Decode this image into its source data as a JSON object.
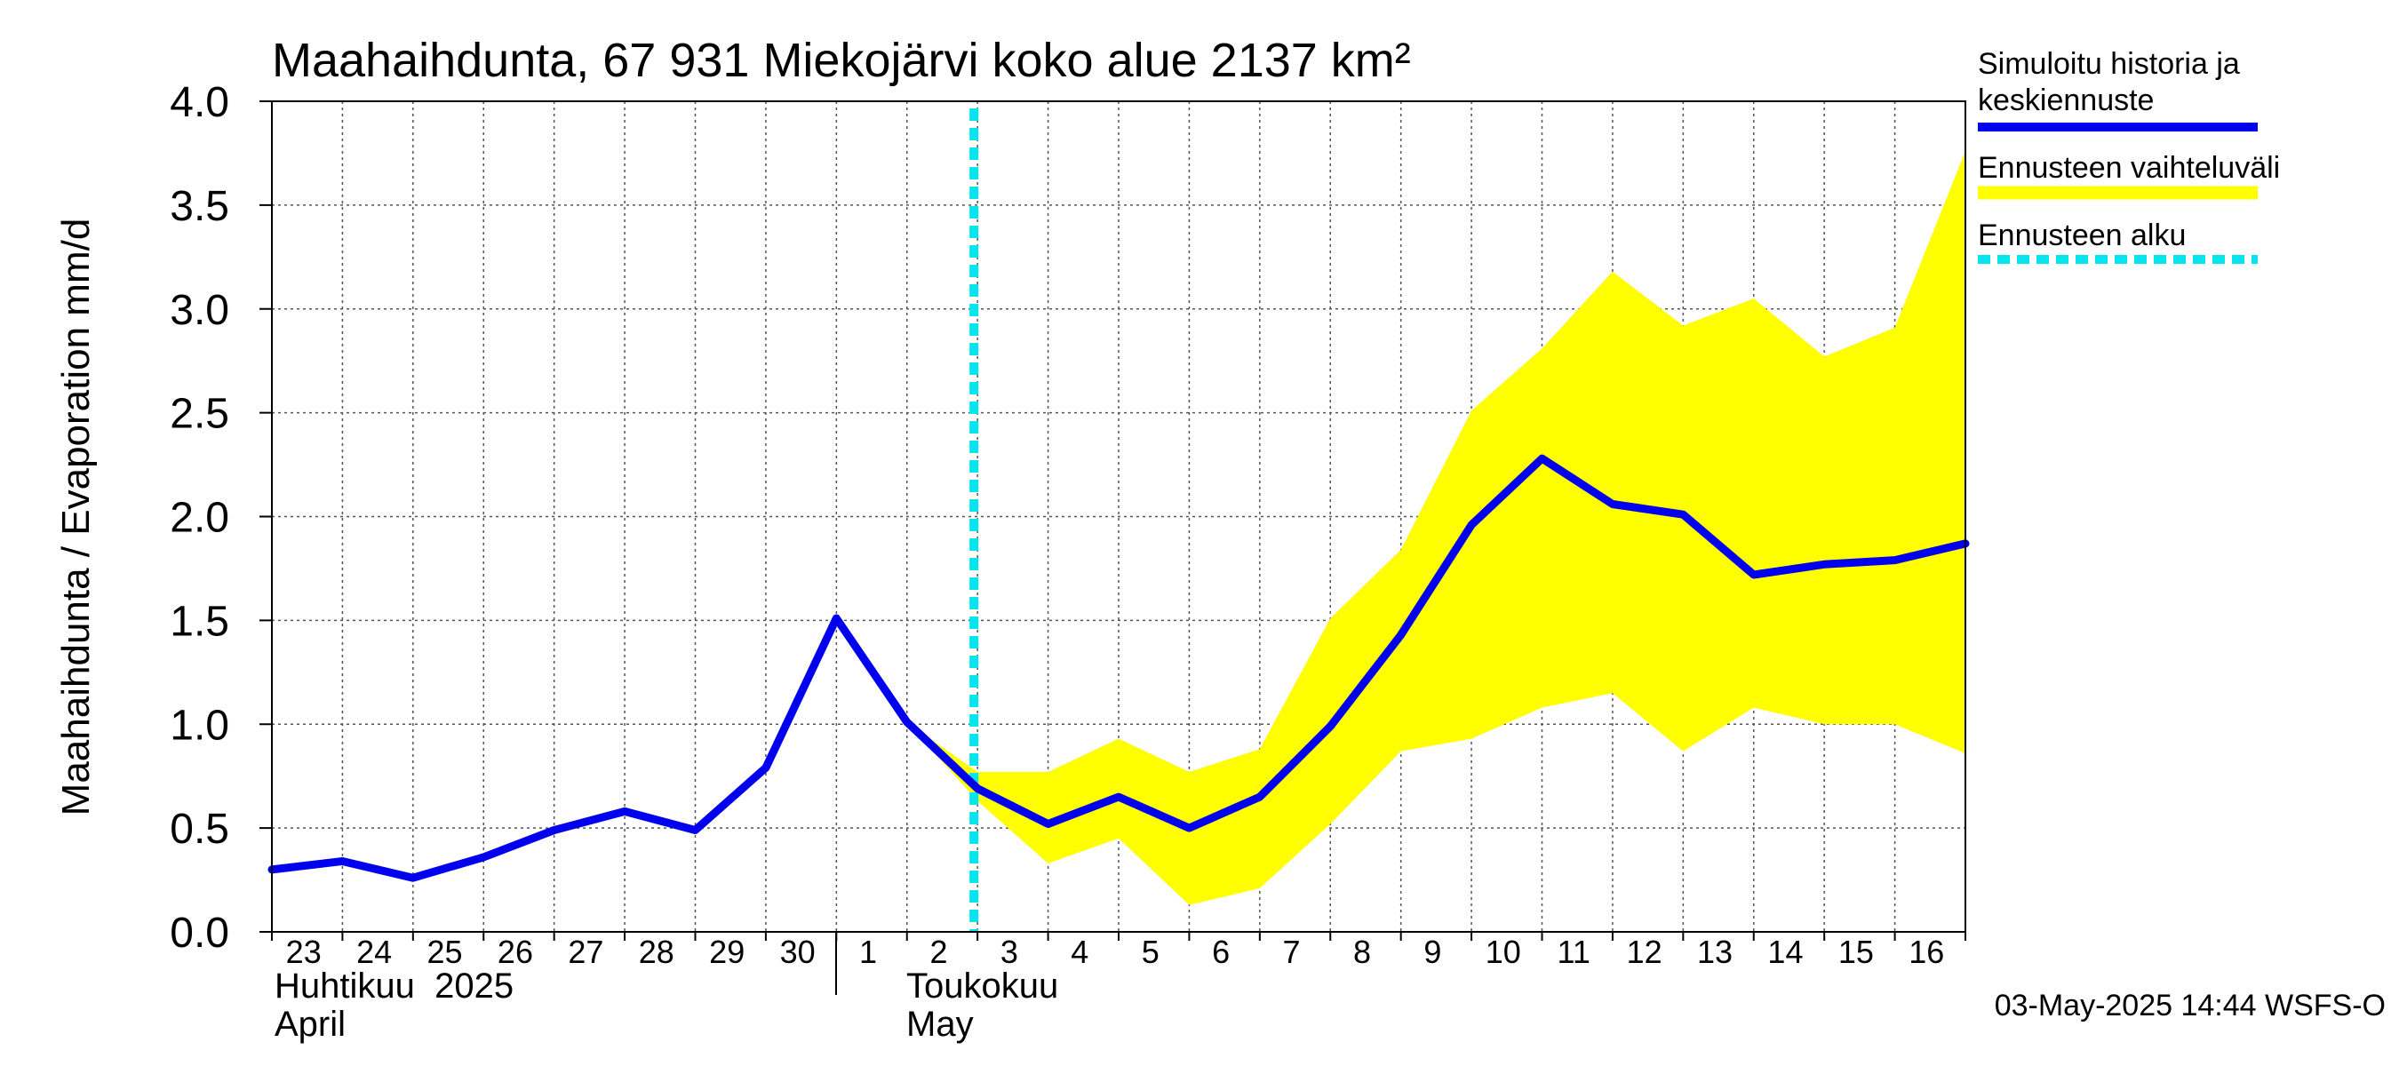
{
  "chart_data": {
    "type": "area",
    "title": "Maahaihdunta, 67 931 Miekojärvi koko alue 2137 km²",
    "ylabel": "Maahaihdunta / Evaporation   mm/d",
    "ylim": [
      0,
      4
    ],
    "yticks": [
      "0.0",
      "0.5",
      "1.0",
      "1.5",
      "2.0",
      "2.5",
      "3.0",
      "3.5",
      "4.0"
    ],
    "grid": true,
    "legend_position": "right",
    "x_day_labels": [
      "23",
      "24",
      "25",
      "26",
      "27",
      "28",
      "29",
      "30",
      "1",
      "2",
      "3",
      "4",
      "5",
      "6",
      "7",
      "8",
      "9",
      "10",
      "11",
      "12",
      "13",
      "14",
      "15",
      "16"
    ],
    "x_dates": [
      "2025-04-23",
      "2025-04-24",
      "2025-04-25",
      "2025-04-26",
      "2025-04-27",
      "2025-04-28",
      "2025-04-29",
      "2025-04-30",
      "2025-05-01",
      "2025-05-02",
      "2025-05-03",
      "2025-05-04",
      "2025-05-05",
      "2025-05-06",
      "2025-05-07",
      "2025-05-08",
      "2025-05-09",
      "2025-05-10",
      "2025-05-11",
      "2025-05-12",
      "2025-05-13",
      "2025-05-14",
      "2025-05-15",
      "2025-05-16"
    ],
    "x_range": [
      "2025-04-23",
      "2025-05-17"
    ],
    "month_labels": [
      {
        "fi": "Huhtikuu  2025",
        "en": "April"
      },
      {
        "fi": "Toukokuu",
        "en": "May"
      }
    ],
    "forecast_start": "2025-05-03",
    "series": [
      {
        "name": "Simuloitu historia ja keskiennuste",
        "color": "#0000ee",
        "points": [
          [
            "2025-04-23",
            0.3
          ],
          [
            "2025-04-24",
            0.34
          ],
          [
            "2025-04-25",
            0.26
          ],
          [
            "2025-04-26",
            0.36
          ],
          [
            "2025-04-27",
            0.49
          ],
          [
            "2025-04-28",
            0.58
          ],
          [
            "2025-04-29",
            0.49
          ],
          [
            "2025-04-30",
            0.79
          ],
          [
            "2025-05-01",
            1.51
          ],
          [
            "2025-05-02",
            1.01
          ],
          [
            "2025-05-03",
            0.69
          ],
          [
            "2025-05-04",
            0.52
          ],
          [
            "2025-05-05",
            0.65
          ],
          [
            "2025-05-06",
            0.5
          ],
          [
            "2025-05-07",
            0.65
          ],
          [
            "2025-05-08",
            0.99
          ],
          [
            "2025-05-09",
            1.43
          ],
          [
            "2025-05-10",
            1.96
          ],
          [
            "2025-05-11",
            2.28
          ],
          [
            "2025-05-12",
            2.06
          ],
          [
            "2025-05-13",
            2.01
          ],
          [
            "2025-05-14",
            1.72
          ],
          [
            "2025-05-15",
            1.77
          ],
          [
            "2025-05-16",
            1.79
          ],
          [
            "2025-05-17",
            1.87
          ]
        ]
      },
      {
        "name": "Ennusteen vaihteluväli",
        "color": "#ffff00",
        "upper": [
          [
            "2025-05-02",
            1.01
          ],
          [
            "2025-05-03",
            0.77
          ],
          [
            "2025-05-04",
            0.77
          ],
          [
            "2025-05-05",
            0.93
          ],
          [
            "2025-05-06",
            0.77
          ],
          [
            "2025-05-07",
            0.88
          ],
          [
            "2025-05-08",
            1.51
          ],
          [
            "2025-05-09",
            1.84
          ],
          [
            "2025-05-10",
            2.51
          ],
          [
            "2025-05-11",
            2.81
          ],
          [
            "2025-05-12",
            3.18
          ],
          [
            "2025-05-13",
            2.92
          ],
          [
            "2025-05-14",
            3.05
          ],
          [
            "2025-05-15",
            2.77
          ],
          [
            "2025-05-16",
            2.91
          ],
          [
            "2025-05-17",
            3.76
          ]
        ],
        "lower": [
          [
            "2025-05-02",
            1.01
          ],
          [
            "2025-05-03",
            0.63
          ],
          [
            "2025-05-04",
            0.33
          ],
          [
            "2025-05-05",
            0.45
          ],
          [
            "2025-05-06",
            0.13
          ],
          [
            "2025-05-07",
            0.21
          ],
          [
            "2025-05-08",
            0.52
          ],
          [
            "2025-05-09",
            0.87
          ],
          [
            "2025-05-10",
            0.93
          ],
          [
            "2025-05-11",
            1.08
          ],
          [
            "2025-05-12",
            1.15
          ],
          [
            "2025-05-13",
            0.87
          ],
          [
            "2025-05-14",
            1.08
          ],
          [
            "2025-05-15",
            1.0
          ],
          [
            "2025-05-16",
            1.0
          ],
          [
            "2025-05-17",
            0.86
          ]
        ]
      },
      {
        "name": "Ennusteen alku",
        "color": "#00e5ee",
        "style": "dashed"
      }
    ],
    "timestamp": "03-May-2025 14:44 WSFS-O"
  }
}
